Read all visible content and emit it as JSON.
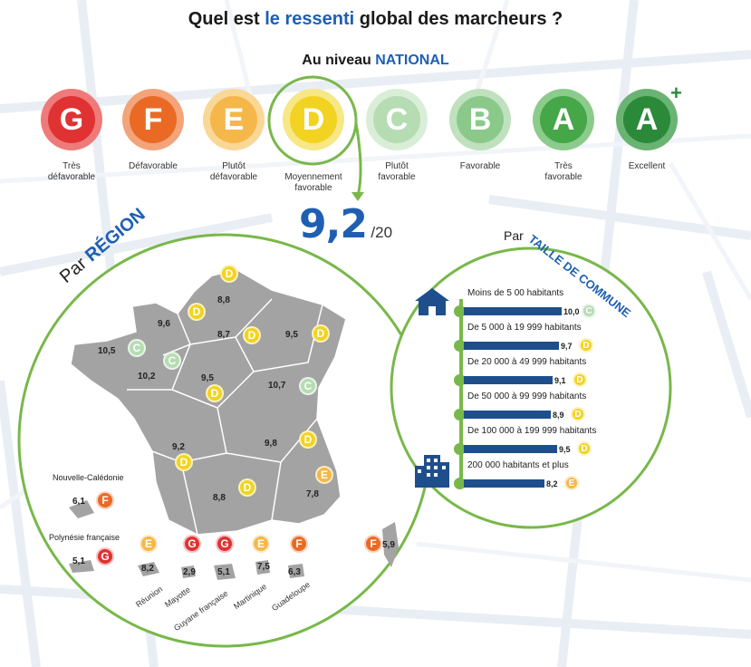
{
  "header": {
    "title_pre": "Quel est",
    "title_hl": "le ressenti",
    "title_post": "global des marcheurs ?",
    "subtitle_pre": "Au niveau",
    "subtitle_hl": "NATIONAL"
  },
  "grades": [
    {
      "letter": "G",
      "label": "Très\ndéfavorable",
      "color": "#e03232",
      "ring": "#ef7a7a"
    },
    {
      "letter": "F",
      "label": "Défavorable",
      "color": "#ea6a25",
      "ring": "#f3a47a"
    },
    {
      "letter": "E",
      "label": "Plutôt\ndéfavorable",
      "color": "#f5b74a",
      "ring": "#f9d796"
    },
    {
      "letter": "D",
      "label": "Moyennement\nfavorable",
      "color": "#f2d321",
      "ring": "#f7e785"
    },
    {
      "letter": "C",
      "label": "Plutôt\nfavorable",
      "color": "#b6dcb4",
      "ring": "#d9eed7"
    },
    {
      "letter": "B",
      "label": "Favorable",
      "color": "#8bc98a",
      "ring": "#bfe1be"
    },
    {
      "letter": "A",
      "label": "Très\nfavorable",
      "color": "#45a748",
      "ring": "#8ccb8c"
    },
    {
      "letter": "A",
      "label": "Excellent",
      "color": "#2b8a3a",
      "ring": "#6bb372",
      "plus": "+"
    }
  ],
  "national": {
    "score": "9,2",
    "suffix": "/20"
  },
  "region": {
    "heading_pre": "Par",
    "heading_hl": "RÉGION",
    "regions": [
      {
        "value": "8,8",
        "grade": "D"
      },
      {
        "value": "9,6",
        "grade": "D"
      },
      {
        "value": "8,7",
        "grade": "D"
      },
      {
        "value": "9,5",
        "grade": "D"
      },
      {
        "value": "10,5",
        "grade": "C"
      },
      {
        "value": "10,2",
        "grade": "C"
      },
      {
        "value": "9,5",
        "grade": "D"
      },
      {
        "value": "10,7",
        "grade": "C"
      },
      {
        "value": "9,2",
        "grade": "D"
      },
      {
        "value": "9,8",
        "grade": "D"
      },
      {
        "value": "8,8",
        "grade": "D"
      },
      {
        "value": "7,8",
        "grade": "E"
      },
      {
        "value": "5,9",
        "grade": "F"
      }
    ],
    "overseas": [
      {
        "name": "Nouvelle-Calédonie",
        "value": "6,1",
        "grade": "F"
      },
      {
        "name": "Polynésie française",
        "value": "5,1",
        "grade": "G"
      },
      {
        "name": "Réunion",
        "value": "8,2",
        "grade": "E"
      },
      {
        "name": "Mayotte",
        "value": "2,9",
        "grade": "G"
      },
      {
        "name": "Guyane française",
        "value": "5,1",
        "grade": "G"
      },
      {
        "name": "Martinique",
        "value": "7,5",
        "grade": "E"
      },
      {
        "name": "Guadeloupe",
        "value": "6,3",
        "grade": "F"
      }
    ]
  },
  "commune": {
    "heading_pre": "Par",
    "heading_hl": "TAILLE DE COMMUNE",
    "rows": [
      {
        "label": "Moins de 5 00 habitants",
        "value": "10,0",
        "grade": "C",
        "fraction": 1.0
      },
      {
        "label": "De 5 000 à 19 999 habitants",
        "value": "9,7",
        "grade": "D",
        "fraction": 0.97
      },
      {
        "label": "De 20 000 à 49 999 habitants",
        "value": "9,1",
        "grade": "D",
        "fraction": 0.91
      },
      {
        "label": "De 50 000 à 99 999 habitants",
        "value": "8,9",
        "grade": "D",
        "fraction": 0.89
      },
      {
        "label": "De 100 000 à 199 999 habitants",
        "value": "9,5",
        "grade": "D",
        "fraction": 0.95
      },
      {
        "label": "200 000 habitants et plus",
        "value": "8,2",
        "grade": "E",
        "fraction": 0.82
      }
    ]
  },
  "icons": {
    "small_town": "house-icon",
    "big_city": "building-icon",
    "arrow": "curved-arrow-icon"
  },
  "colors": {
    "accent_blue": "#1e5fb3",
    "circle_green": "#78b84a",
    "bar_blue": "#1f4e8c",
    "map_gray": "#9e9e9e"
  }
}
